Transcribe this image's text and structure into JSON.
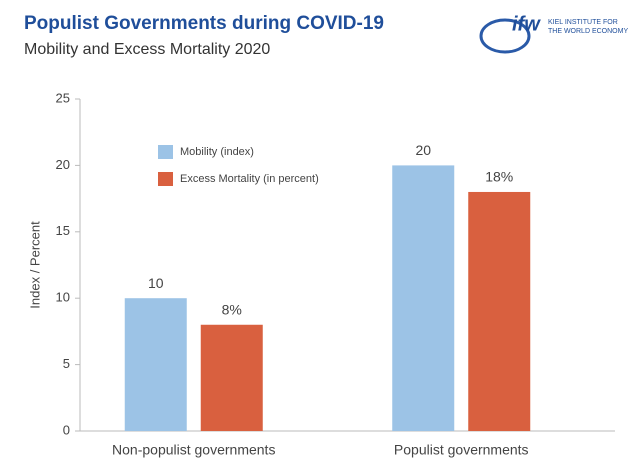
{
  "chart_data": {
    "type": "bar",
    "title": "Populist Governments during COVID-19",
    "subtitle": "Mobility and Excess Mortality 2020",
    "logo": "ifw",
    "logo_caption": [
      "KIEL INSTITUTE FOR",
      "THE WORLD ECONOMY"
    ],
    "ylabel": "Index / Percent",
    "categories": [
      "Non-populist governments",
      "Populist governments"
    ],
    "series": [
      {
        "name": "Mobility (index)",
        "color": "#9cc3e6",
        "values": [
          10,
          20
        ]
      },
      {
        "name": "Excess Mortality (in percent)",
        "color": "#d9603f",
        "values": [
          8,
          18
        ],
        "value_labels": [
          "8%",
          "18%"
        ]
      }
    ],
    "ylim": [
      0,
      25
    ],
    "yticks": [
      0,
      5,
      10,
      15,
      20,
      25
    ],
    "grid": false,
    "legend": "top-left"
  }
}
